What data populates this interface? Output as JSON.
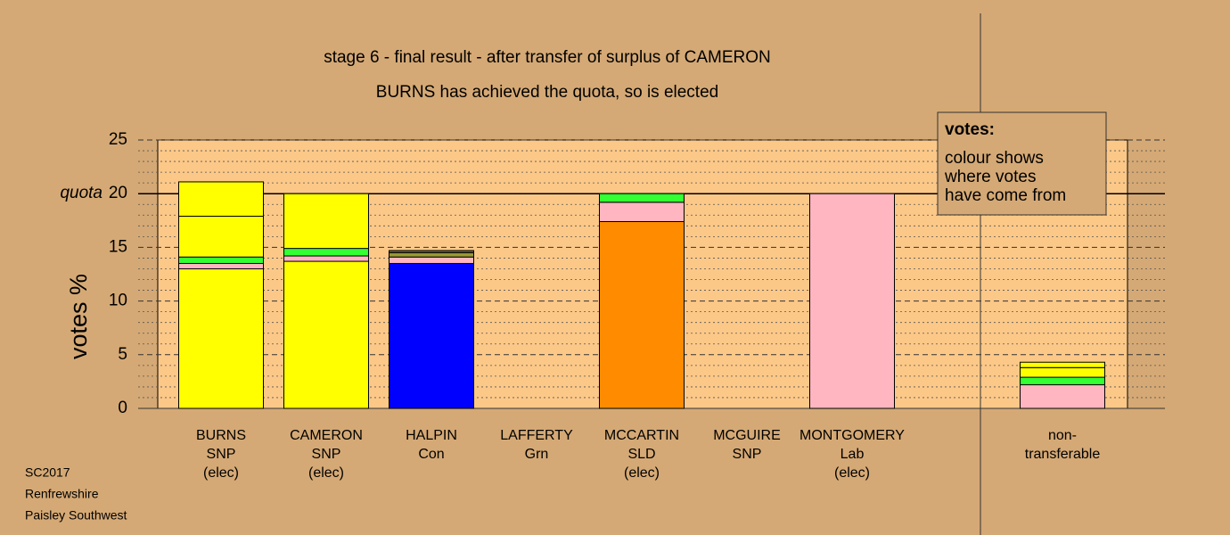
{
  "chart_data": {
    "type": "stacked-bar",
    "title": "stage 6 - final result - after transfer of surplus of CAMERON",
    "subtitle": "BURNS has achieved the quota, so is elected",
    "y_label": "votes %",
    "categories": [
      [
        "BURNS",
        "SNP",
        "(elec)"
      ],
      [
        "CAMERON",
        "SNP",
        "(elec)"
      ],
      [
        "HALPIN",
        "Con"
      ],
      [
        "LAFFERTY",
        "Grn"
      ],
      [
        "MCCARTIN",
        "SLD",
        "(elec)"
      ],
      [
        "MCGUIRE",
        "SNP"
      ],
      [
        "MONTGOMERY",
        "Lab",
        "(elec)"
      ],
      [
        "non-",
        "transferable"
      ]
    ],
    "stacks": [
      [
        {
          "value": 13.0,
          "color": "#ffff00"
        },
        {
          "value": 0.5,
          "color": "#ffb6c1"
        },
        {
          "value": 0.6,
          "color": "#33ff33"
        },
        {
          "value": 3.8,
          "color": "#ffff00"
        },
        {
          "value": 3.2,
          "color": "#ffff00"
        }
      ],
      [
        {
          "value": 13.7,
          "color": "#ffff00"
        },
        {
          "value": 0.5,
          "color": "#ffb6c1"
        },
        {
          "value": 0.7,
          "color": "#33ff33"
        },
        {
          "value": 5.1,
          "color": "#ffff00"
        }
      ],
      [
        {
          "value": 13.5,
          "color": "#0000ff"
        },
        {
          "value": 0.6,
          "color": "#ffb6c1"
        },
        {
          "value": 0.4,
          "color": "#999933"
        },
        {
          "value": 0.2,
          "color": "#666633"
        }
      ],
      [
        {
          "value": 0,
          "color": "#33ff33"
        }
      ],
      [
        {
          "value": 17.4,
          "color": "#ff8c00"
        },
        {
          "value": 1.8,
          "color": "#ffb6c1"
        },
        {
          "value": 0.8,
          "color": "#33ff33"
        }
      ],
      [
        {
          "value": 0,
          "color": "#ffff00"
        }
      ],
      [
        {
          "value": 20,
          "color": "#ffb6c1"
        }
      ],
      [
        {
          "value": 2.2,
          "color": "#ffb6c1"
        },
        {
          "value": 0.7,
          "color": "#33ff33"
        },
        {
          "value": 0.9,
          "color": "#ffff00"
        },
        {
          "value": 0.5,
          "color": "#ffff00"
        }
      ]
    ],
    "ylim": [
      0,
      25
    ],
    "yticks": [
      0,
      5,
      10,
      15,
      20,
      25
    ],
    "minor_yticks": [
      1,
      2,
      3,
      4,
      6,
      7,
      8,
      9,
      11,
      12,
      13,
      14,
      16,
      17,
      18,
      19,
      21,
      22,
      23,
      24
    ],
    "quota": {
      "value": 20,
      "label": "quota"
    },
    "legend": {
      "title": "votes:",
      "lines": [
        "colour shows",
        "where votes",
        "have come from"
      ]
    },
    "footer": [
      "SC2017",
      "Renfrewshire",
      "Paisley Southwest"
    ]
  }
}
